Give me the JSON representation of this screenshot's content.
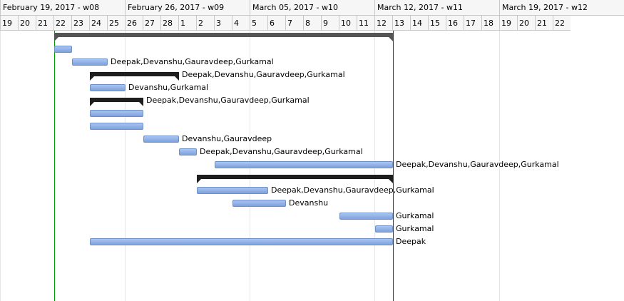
{
  "timeline": {
    "weeks": [
      "February 19, 2017 - w08",
      "February 26, 2017 - w09",
      "March 05, 2017 - w10",
      "March 12, 2017 - w11",
      "March 19, 2017 - w12"
    ],
    "days": [
      "19",
      "20",
      "21",
      "22",
      "23",
      "24",
      "25",
      "26",
      "27",
      "28",
      "1",
      "2",
      "3",
      "4",
      "5",
      "6",
      "7",
      "8",
      "9",
      "10",
      "11",
      "12",
      "13",
      "14",
      "15",
      "16",
      "17",
      "18",
      "19",
      "20",
      "21",
      "22"
    ]
  },
  "markers": [
    {
      "name": "today-line",
      "color": "#00a000"
    },
    {
      "name": "deadline-line",
      "color": "#d00000"
    }
  ],
  "colors": {
    "task_bar": "#89abe3",
    "summary_bar": "#1e1e1e"
  },
  "tasks": [
    {
      "kind": "summary-root",
      "resources": ""
    },
    {
      "kind": "task",
      "resources": ""
    },
    {
      "kind": "task",
      "resources": "Deepak,Devanshu,Gauravdeep,Gurkamal"
    },
    {
      "kind": "summary",
      "resources": "Deepak,Devanshu,Gauravdeep,Gurkamal"
    },
    {
      "kind": "task",
      "resources": "Devanshu,Gurkamal"
    },
    {
      "kind": "summary",
      "resources": "Deepak,Devanshu,Gauravdeep,Gurkamal"
    },
    {
      "kind": "task",
      "resources": ""
    },
    {
      "kind": "task",
      "resources": ""
    },
    {
      "kind": "task",
      "resources": "Devanshu,Gauravdeep"
    },
    {
      "kind": "task",
      "resources": "Deepak,Devanshu,Gauravdeep,Gurkamal"
    },
    {
      "kind": "task",
      "resources": "Deepak,Devanshu,Gauravdeep,Gurkamal"
    },
    {
      "kind": "summary",
      "resources": ""
    },
    {
      "kind": "task",
      "resources": "Deepak,Devanshu,Gauravdeep,Gurkamal"
    },
    {
      "kind": "task",
      "resources": "Devanshu"
    },
    {
      "kind": "task",
      "resources": "Gurkamal"
    },
    {
      "kind": "task",
      "resources": "Gurkamal"
    },
    {
      "kind": "task",
      "resources": "Deepak"
    }
  ]
}
